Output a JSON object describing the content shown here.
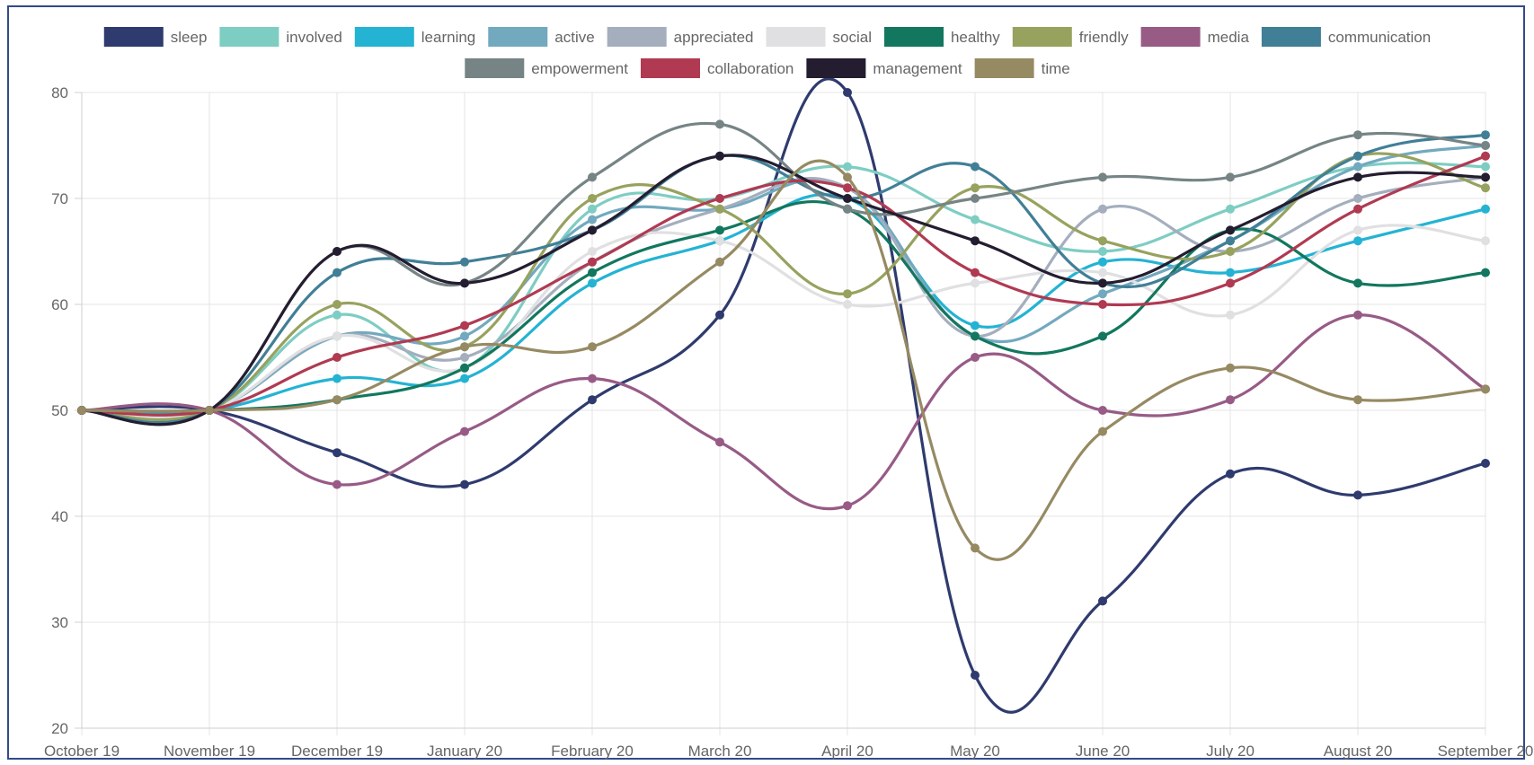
{
  "chart_data": {
    "type": "line",
    "categories": [
      "October 19",
      "November 19",
      "December 19",
      "January 20",
      "February 20",
      "March 20",
      "April 20",
      "May 20",
      "June 20",
      "July 20",
      "August 20",
      "September 20"
    ],
    "ylim": [
      20,
      80
    ],
    "yticks": [
      20,
      30,
      40,
      50,
      60,
      70,
      80
    ],
    "grid": true,
    "legend_position": "top",
    "series": [
      {
        "name": "sleep",
        "color": "#2f3b6e",
        "values": [
          50,
          50,
          46,
          43,
          51,
          59,
          80,
          25,
          32,
          44,
          42,
          45
        ]
      },
      {
        "name": "involved",
        "color": "#7ecdc3",
        "values": [
          50,
          50,
          59,
          54,
          69,
          70,
          73,
          68,
          65,
          69,
          73,
          73
        ]
      },
      {
        "name": "learning",
        "color": "#24b3d3",
        "values": [
          50,
          50,
          53,
          53,
          62,
          66,
          70,
          58,
          64,
          63,
          66,
          69
        ]
      },
      {
        "name": "active",
        "color": "#72a9bf",
        "values": [
          50,
          50,
          57,
          57,
          68,
          69,
          71,
          57,
          61,
          66,
          73,
          75
        ]
      },
      {
        "name": "appreciated",
        "color": "#a4aebd",
        "values": [
          50,
          50,
          57,
          55,
          64,
          69,
          71,
          57,
          69,
          65,
          70,
          72
        ]
      },
      {
        "name": "social",
        "color": "#e0e0e2",
        "values": [
          50,
          50,
          57,
          54,
          65,
          66,
          60,
          62,
          63,
          59,
          67,
          66
        ]
      },
      {
        "name": "healthy",
        "color": "#12775e",
        "values": [
          50,
          50,
          51,
          54,
          63,
          67,
          69,
          57,
          57,
          67,
          62,
          63
        ]
      },
      {
        "name": "friendly",
        "color": "#97a25e",
        "values": [
          50,
          50,
          60,
          56,
          70,
          69,
          61,
          71,
          66,
          65,
          74,
          71
        ]
      },
      {
        "name": "media",
        "color": "#975b86",
        "values": [
          50,
          50,
          43,
          48,
          53,
          47,
          41,
          55,
          50,
          51,
          59,
          52
        ]
      },
      {
        "name": "communication",
        "color": "#417f97",
        "values": [
          50,
          50,
          63,
          64,
          67,
          74,
          70,
          73,
          62,
          66,
          74,
          76
        ]
      },
      {
        "name": "empowerment",
        "color": "#768485",
        "values": [
          50,
          50,
          65,
          62,
          72,
          77,
          69,
          70,
          72,
          72,
          76,
          75
        ]
      },
      {
        "name": "collaboration",
        "color": "#b03a52",
        "values": [
          50,
          50,
          55,
          58,
          64,
          70,
          71,
          63,
          60,
          62,
          69,
          74
        ]
      },
      {
        "name": "management",
        "color": "#241d30",
        "values": [
          50,
          50,
          65,
          62,
          67,
          74,
          70,
          66,
          62,
          67,
          72,
          72
        ]
      },
      {
        "name": "time",
        "color": "#968a63",
        "values": [
          50,
          50,
          51,
          56,
          56,
          64,
          72,
          37,
          48,
          54,
          51,
          52
        ]
      }
    ]
  }
}
